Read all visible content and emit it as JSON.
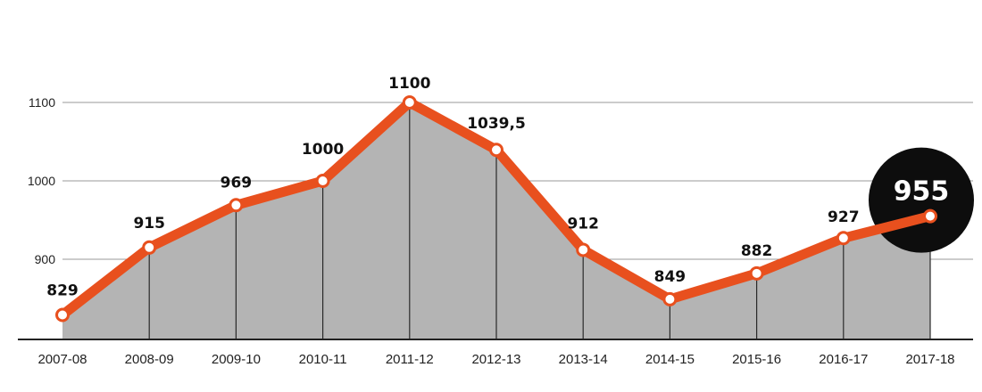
{
  "chart_data": {
    "type": "area",
    "title": "",
    "xlabel": "",
    "ylabel": "",
    "categories": [
      "2007-08",
      "2008-09",
      "2009-10",
      "2010-11",
      "2011-12",
      "2012-13",
      "2013-14",
      "2014-15",
      "2015-16",
      "2016-17",
      "2017-18"
    ],
    "values": [
      829,
      915,
      969,
      1000,
      1100,
      1039.5,
      912,
      849,
      882,
      927,
      955
    ],
    "data_labels": [
      "829",
      "915",
      "969",
      "1000",
      "1100",
      "1039,5",
      "912",
      "849",
      "882",
      "927",
      "955"
    ],
    "yticks": [
      900,
      1000,
      1100
    ],
    "ylim": [
      800,
      1180
    ],
    "grid": true,
    "highlight_index": 10,
    "colors": {
      "line": "#e8501e",
      "area": "#b4b4b4",
      "marker_fill": "#ffffff",
      "highlight_circle": "#0d0d0d",
      "gridline": "#9a9a9a",
      "axis": "#222222"
    }
  }
}
